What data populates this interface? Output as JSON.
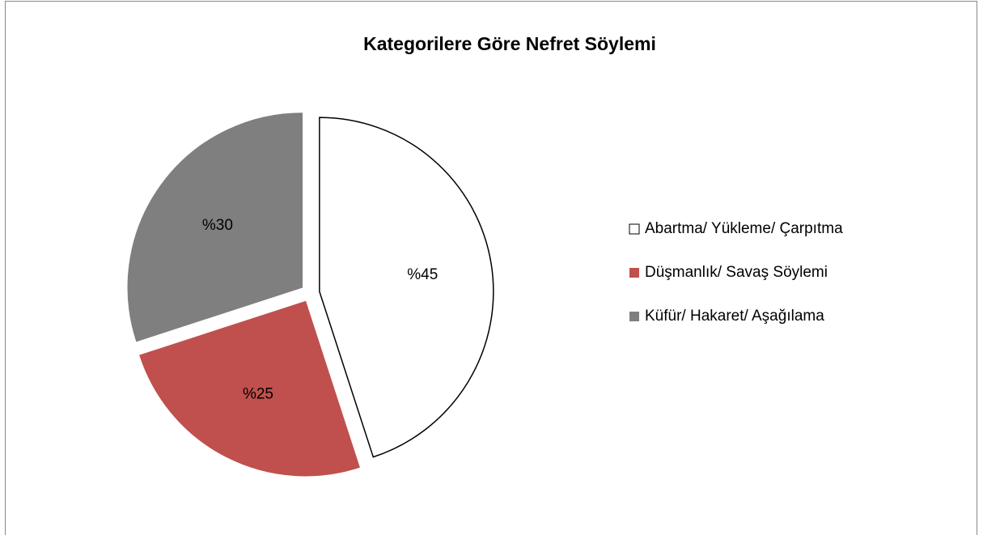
{
  "chart_data": {
    "type": "pie",
    "title": "Kategorilere Göre Nefret Söylemi",
    "categories": [
      "Abartma/ Yükleme/ Çarpıtma",
      "Düşmanlık/ Savaş Söylemi",
      "Küfür/ Hakaret/ Aşağılama"
    ],
    "values": [
      45,
      25,
      30
    ],
    "value_labels": [
      "%45",
      "%25",
      "%30"
    ],
    "colors": [
      "#ffffff",
      "#c0504d",
      "#7f7f7f"
    ],
    "exploded": true,
    "legend": "right"
  }
}
